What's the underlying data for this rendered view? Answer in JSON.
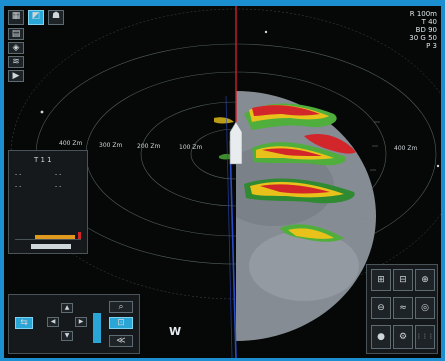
{
  "toolbar": {
    "buttons": [
      {
        "name": "menu-button",
        "icon": "grid-icon",
        "glyph": "▦",
        "active": false
      },
      {
        "name": "radar-mode-button",
        "icon": "radar-icon",
        "glyph": "◩",
        "active": true
      },
      {
        "name": "user-button",
        "icon": "person-icon",
        "glyph": "☗",
        "active": false
      }
    ]
  },
  "side_controls": [
    {
      "name": "chart-button",
      "glyph": "▤"
    },
    {
      "name": "target-button",
      "glyph": "◈"
    },
    {
      "name": "layers-button",
      "glyph": "≋"
    },
    {
      "name": "play-button",
      "glyph": "▶"
    }
  ],
  "readouts": {
    "lines": [
      {
        "key": "R",
        "value": "100m"
      },
      {
        "key": "T",
        "value": "40"
      },
      {
        "key": "BD",
        "value": "90"
      },
      {
        "key": "30 G",
        "value": "50"
      },
      {
        "key": "P",
        "value": "3"
      }
    ]
  },
  "range_labels": [
    "400 Zm",
    "300 Zm",
    "200 Zm",
    "100 Zm",
    "400 Zm"
  ],
  "compass": {
    "west": "W"
  },
  "info_panel": {
    "title": "T 1 1",
    "rows": [
      "- -",
      "- -",
      "- -",
      "- -"
    ]
  },
  "zoom_button": {
    "glyph": "⌕"
  },
  "bottom_right_buttons": [
    {
      "name": "grid-view-button",
      "glyph": "⊞"
    },
    {
      "name": "split-view-button",
      "glyph": "⊟"
    },
    {
      "name": "zoom-in-button",
      "glyph": "⊕"
    },
    {
      "name": "zoom-out-button",
      "glyph": "⊖"
    },
    {
      "name": "echo-button",
      "glyph": "≈"
    },
    {
      "name": "track-button",
      "glyph": "◎"
    },
    {
      "name": "record-button",
      "glyph": "●"
    },
    {
      "name": "settings-button",
      "glyph": "⚙"
    },
    {
      "name": "keypad-button",
      "glyph": "⋮⋮⋮"
    }
  ],
  "nav_pad": {
    "arrows": [
      {
        "name": "pan-up-button",
        "glyph": "▲"
      },
      {
        "name": "pan-left-button",
        "glyph": "◀"
      },
      {
        "name": "pan-right-button",
        "glyph": "▶"
      },
      {
        "name": "pan-down-button",
        "glyph": "▼"
      }
    ],
    "left_toggle": {
      "glyph": "⇆"
    },
    "mid_toggle": {
      "glyph": "⊡"
    }
  },
  "colors": {
    "echo_red": "#d2262a",
    "echo_yellow": "#e8c21a",
    "echo_green": "#4fae3c",
    "seabed": "#8b9198",
    "heading_line": "#d21e2b",
    "course_line": "#2b4cc9",
    "accent": "#2aa6d6"
  }
}
